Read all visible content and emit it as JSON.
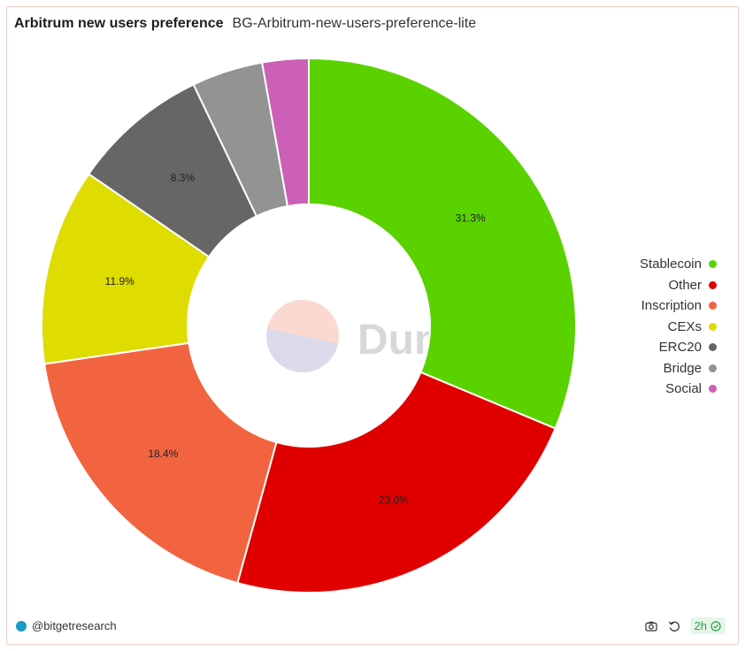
{
  "header": {
    "title": "Arbitrum new users preference",
    "subtitle": "BG-Arbitrum-new-users-preference-lite"
  },
  "watermark": {
    "text": "Dune"
  },
  "footer": {
    "author": "@bitgetresearch",
    "refresh_age": "2h",
    "icons": [
      "camera-icon",
      "refresh-icon",
      "check-circle-icon"
    ]
  },
  "chart_data": {
    "type": "pie",
    "style": "donut",
    "legend_position": "right",
    "categories": [
      "Stablecoin",
      "Other",
      "Inscription",
      "CEXs",
      "ERC20",
      "Bridge",
      "Social"
    ],
    "values": [
      31.3,
      23.0,
      18.4,
      11.9,
      8.3,
      4.3,
      2.8
    ],
    "labels": [
      "31.3%",
      "23.0%",
      "18.4%",
      "11.9%",
      "8.3%",
      "",
      ""
    ],
    "colors": [
      "#5ad200",
      "#e00000",
      "#f26440",
      "#dedc00",
      "#666666",
      "#939393",
      "#cc5fb8"
    ]
  }
}
